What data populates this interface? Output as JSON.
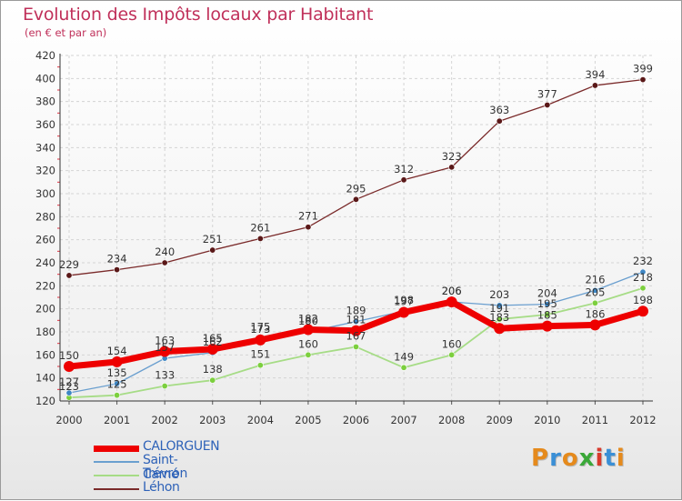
{
  "title": "Evolution des Impôts locaux par Habitant",
  "subtitle": "(en € et par an)",
  "logo": {
    "letters": [
      "P",
      "r",
      "o",
      "x",
      "i",
      "t",
      "i"
    ],
    "colors": [
      "#e58a1c",
      "#3a8fd6",
      "#e58a1c",
      "#3aa838",
      "#d83a2c",
      "#3a8fd6",
      "#e58a1c"
    ]
  },
  "chart_data": {
    "type": "line",
    "title": "Evolution des Impôts locaux par Habitant",
    "subtitle": "(en € et par an)",
    "x": [
      2000,
      2001,
      2002,
      2003,
      2004,
      2005,
      2006,
      2007,
      2008,
      2009,
      2010,
      2011,
      2012
    ],
    "xlabels": [
      "2000",
      "2001",
      "2002",
      "2003",
      "2004",
      "2005",
      "2006",
      "2007",
      "2008",
      "2009",
      "2010",
      "2011",
      "2012"
    ],
    "ylim": [
      120,
      420
    ],
    "yticks": [
      120,
      140,
      160,
      180,
      200,
      220,
      240,
      260,
      280,
      300,
      320,
      340,
      360,
      380,
      400,
      420
    ],
    "grid": true,
    "legend": "bottom-left",
    "series": [
      {
        "name": "Léhon",
        "color": "#7a2a2a",
        "dot": "#5a1818",
        "width": 1.3,
        "values": [
          229,
          234,
          240,
          251,
          261,
          271,
          295,
          312,
          323,
          363,
          377,
          394,
          399
        ],
        "labels": [
          "229",
          "234",
          "240",
          "251",
          "261",
          "271",
          "295",
          "312",
          "323",
          "363",
          "377",
          "394",
          "399"
        ]
      },
      {
        "name": "Trévron",
        "color": "#a6dc86",
        "dot": "#7ccf3e",
        "width": 1.8,
        "values": [
          123,
          125,
          133,
          138,
          151,
          160,
          167,
          149,
          160,
          191,
          195,
          205,
          218
        ],
        "labels": [
          "123",
          "125",
          "133",
          "138",
          "151",
          "160",
          "167",
          "149",
          "160",
          "191",
          "195",
          "205",
          "218"
        ]
      },
      {
        "name": "Saint-Carné",
        "color": "#6a9fcf",
        "dot": "#3e86c4",
        "width": 1.3,
        "values": [
          127,
          135,
          157,
          162,
          175,
          180,
          189,
          198,
          206,
          203,
          204,
          216,
          232
        ],
        "labels": [
          "127",
          "135",
          "157",
          "162",
          "175",
          "180",
          "189",
          "198",
          "206",
          "203",
          "204",
          "216",
          "232"
        ]
      },
      {
        "name": "CALORGUEN",
        "color": "#ee0000",
        "dot": "#ee0000",
        "width": 7,
        "values": [
          150,
          154,
          163,
          165,
          173,
          182,
          181,
          197,
          206,
          183,
          185,
          186,
          198
        ],
        "labels": [
          "150",
          "154",
          "163",
          "165",
          "173",
          "182",
          "181",
          "197",
          "206",
          "183",
          "185",
          "186",
          "198"
        ]
      }
    ]
  },
  "legend_items": [
    {
      "name": "CALORGUEN",
      "color": "#ee0000",
      "h": 7
    },
    {
      "name": "Saint-Carné",
      "color": "#6a9fcf",
      "h": 2
    },
    {
      "name": "Trévron",
      "color": "#a6dc86",
      "h": 2
    },
    {
      "name": "Léhon",
      "color": "#7a2a2a",
      "h": 2
    }
  ]
}
